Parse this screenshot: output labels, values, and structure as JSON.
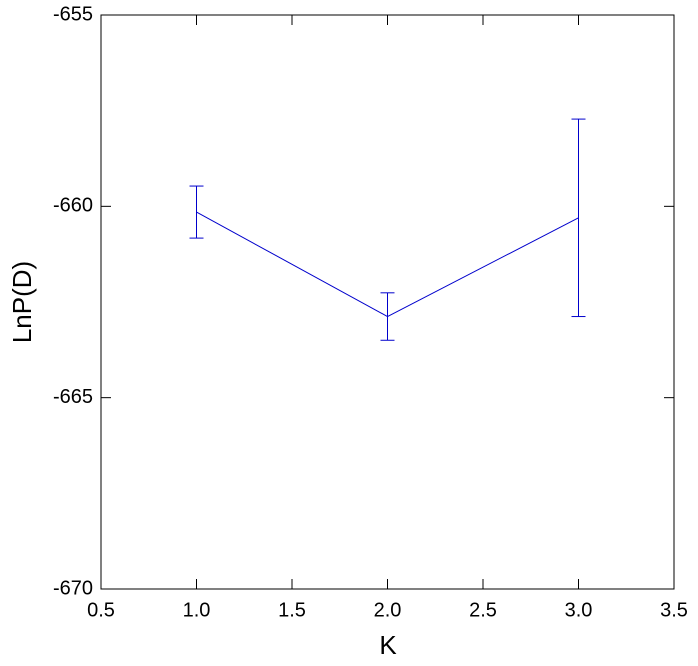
{
  "chart_data": {
    "type": "errorline",
    "x_label": "K",
    "y_label": "LnP(D)",
    "x": [
      1,
      2,
      3
    ],
    "series": [
      {
        "color": "#0000cc",
        "values": [
          -660.15,
          -662.88,
          -660.3
        ],
        "errors": [
          0.68,
          0.62,
          2.58
        ]
      }
    ],
    "xlim": [
      0.5,
      3.5
    ],
    "xticks": [
      {
        "value": 0.5,
        "label": "0.5"
      },
      {
        "value": 1,
        "label": "1.0"
      },
      {
        "value": 1.5,
        "label": "1.5"
      },
      {
        "value": 2,
        "label": "2.0"
      },
      {
        "value": 2.5,
        "label": "2.5"
      },
      {
        "value": 3,
        "label": "3.0"
      },
      {
        "value": 3.5,
        "label": "3.5"
      }
    ],
    "ylim": [
      -670,
      -655
    ],
    "yticks": [
      -670,
      -665,
      -660,
      -655
    ]
  }
}
